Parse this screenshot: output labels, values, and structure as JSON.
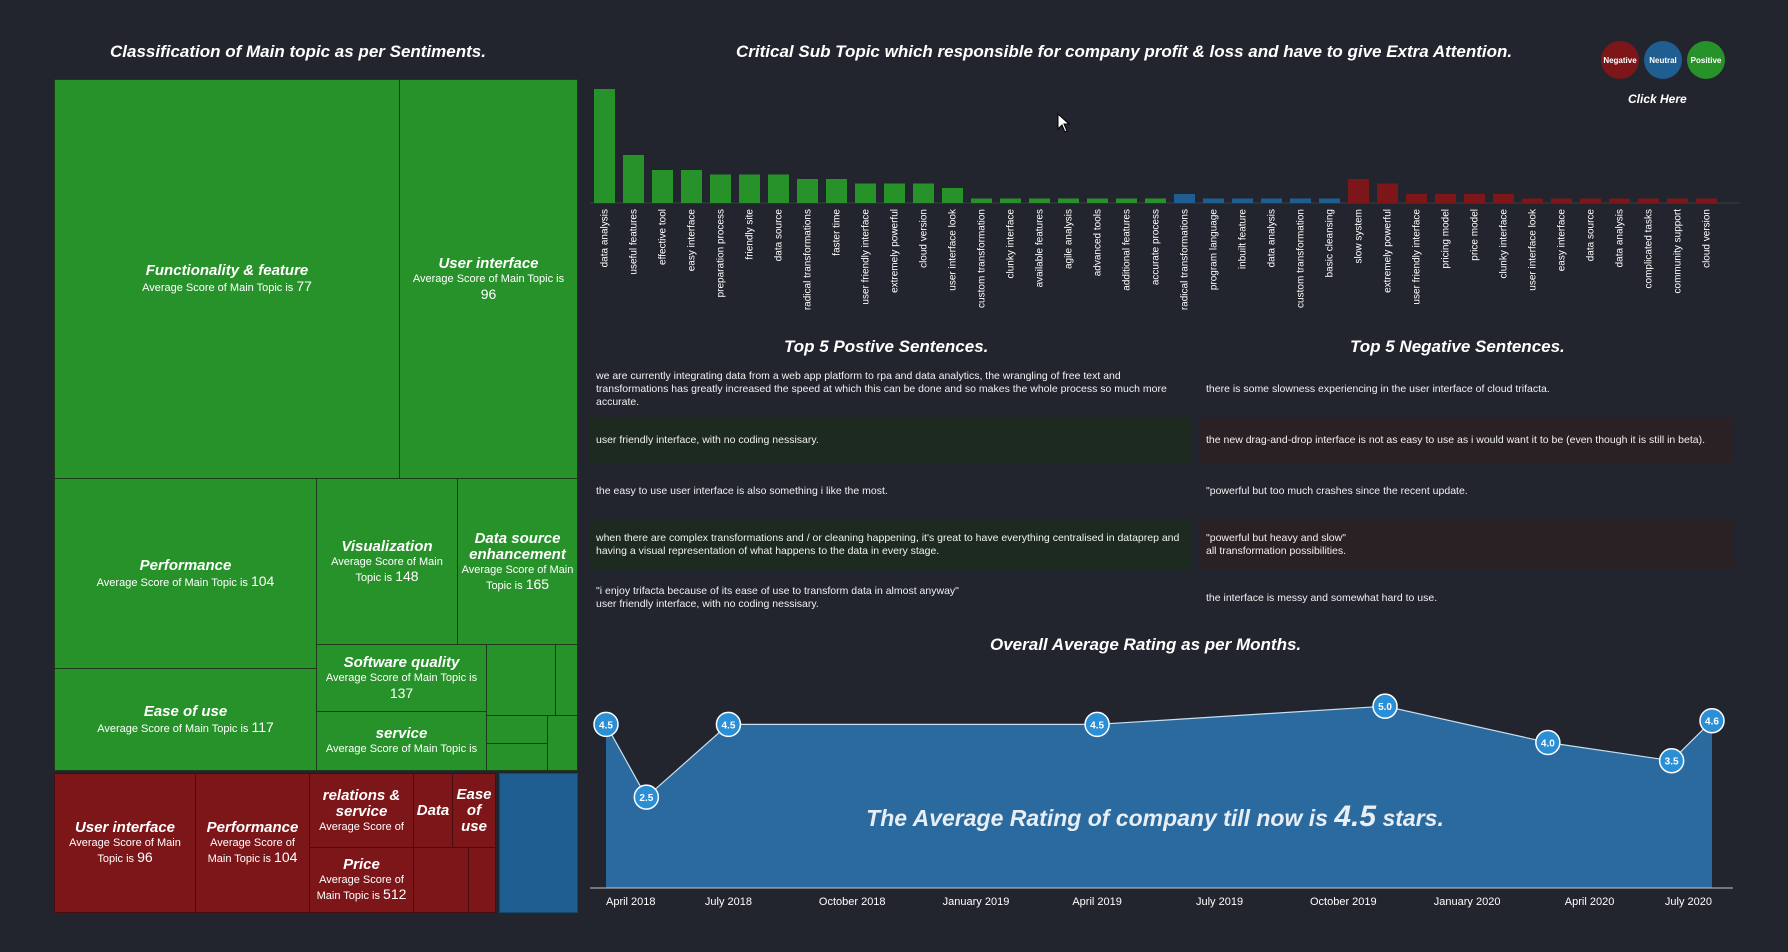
{
  "titles": {
    "treemap": "Classification of Main topic as per Sentiments.",
    "bars": "Critical Sub Topic which responsible for company profit & loss and have to give Extra Attention.",
    "positive": "Top 5 Postive Sentences.",
    "negative": "Top 5 Negative Sentences.",
    "line": "Overall Average Rating as per Months."
  },
  "legend": {
    "negative": "Negative",
    "neutral": "Neutral",
    "positive": "Positive",
    "click_here": "Click Here",
    "colors": {
      "negative": "#7d1619",
      "neutral": "#1f5e91",
      "positive": "#28922a"
    }
  },
  "treemap": {
    "prefix": "Average Score of Main Topic is",
    "green": [
      {
        "name": "Functionality & feature",
        "sub": "Average Score of Main Topic is",
        "value": "77"
      },
      {
        "name": "User interface",
        "sub": "Average Score of Main Topic is",
        "value": "96"
      },
      {
        "name": "Performance",
        "sub": "Average Score of Main Topic is",
        "value": "104"
      },
      {
        "name": "Visualization",
        "sub": "Average Score of Main Topic is",
        "value": "148"
      },
      {
        "name": "Data source enhancement",
        "sub": "Average Score of Main Topic is",
        "value": "165"
      },
      {
        "name": "Ease of use",
        "sub": "Average Score of Main Topic is",
        "value": "117"
      },
      {
        "name": "Software quality",
        "sub": "Average Score of Main Topic is",
        "value": "137"
      },
      {
        "name": "service",
        "sub": "Average Score of Main Topic is",
        "value": ""
      }
    ],
    "red": [
      {
        "name": "User interface",
        "sub": "Average Score of Main Topic is",
        "value": "96"
      },
      {
        "name": "Performance",
        "sub": "Average Score of Main Topic is",
        "value": "104"
      },
      {
        "name": "relations & service",
        "sub": "Average Score of",
        "value": ""
      },
      {
        "name": "Data",
        "sub": "",
        "value": ""
      },
      {
        "name": "Ease of use",
        "sub": "",
        "value": ""
      },
      {
        "name": "Price",
        "sub": "Average Score of Main Topic is",
        "value": "512"
      }
    ]
  },
  "sentences": {
    "positive": [
      "we are currently integrating data from a web app platform to rpa and data analytics, the wrangling of free text and transformations has greatly increased the speed at which this can be done and so makes the whole process so much more accurate.",
      "user friendly interface, with no coding nessisary.",
      "the easy to use user interface is also something i like the most.",
      "when there are complex transformations and / or cleaning happening, it's great to have everything centralised in dataprep and having a visual representation of what happens to the data in every stage.",
      "\"i enjoy trifacta because of its ease of use to transform data in almost anyway\"\n user friendly interface, with no coding nessisary."
    ],
    "negative": [
      "there is some slowness experiencing in the user interface of cloud trifacta.",
      "the new drag-and-drop interface is not as easy to use as i would want it to be (even though it is still in beta).",
      "\"powerful but too much crashes since the recent update.",
      "\"powerful but heavy and slow\"\n all transformation possibilities.",
      "the interface is messy and somewhat hard to use."
    ]
  },
  "chart_data": [
    {
      "type": "bar",
      "title": "Critical Sub Topic which responsible for company profit & loss and have to give Extra Attention.",
      "categories": [
        "data analysis",
        "useful features",
        "effective tool",
        "easy interface",
        "preparation process",
        "friendly site",
        "data source",
        "radical transformations",
        "faster time",
        "user friendly interface",
        "extremely powerful",
        "cloud version",
        "user interface look",
        "custom transformation",
        "clunky interface",
        "available features",
        "agile analysis",
        "advanced tools",
        "additional features",
        "accurate process",
        "radical transformations",
        "program language",
        "inbuilt feature",
        "data analysis",
        "custom transformation",
        "basic cleansing",
        "slow system",
        "extremely powerful",
        "user friendly interface",
        "pricing model",
        "price model",
        "clunky interface",
        "user interface look",
        "easy interface",
        "data source",
        "data analysis",
        "complicated tasks",
        "community support",
        "cloud version"
      ],
      "values": [
        38,
        16,
        11,
        11,
        9.5,
        9.5,
        9.5,
        8,
        8,
        6.5,
        6.5,
        6.5,
        5,
        1.5,
        1.5,
        1.5,
        1.5,
        1.5,
        1.5,
        1.5,
        3,
        1.5,
        1.5,
        1.5,
        1.5,
        1.5,
        8,
        6.5,
        3,
        3,
        3,
        3,
        1.5,
        1.5,
        1.5,
        1.5,
        1.5,
        1.5,
        1.5
      ],
      "sentiment": [
        "positive",
        "positive",
        "positive",
        "positive",
        "positive",
        "positive",
        "positive",
        "positive",
        "positive",
        "positive",
        "positive",
        "positive",
        "positive",
        "positive",
        "positive",
        "positive",
        "positive",
        "positive",
        "positive",
        "positive",
        "neutral",
        "neutral",
        "neutral",
        "neutral",
        "neutral",
        "neutral",
        "negative",
        "negative",
        "negative",
        "negative",
        "negative",
        "negative",
        "negative",
        "negative",
        "negative",
        "negative",
        "negative",
        "negative",
        "negative"
      ],
      "colors": {
        "positive": "#28922a",
        "neutral": "#1f5e91",
        "negative": "#7d1619"
      }
    },
    {
      "type": "area",
      "title": "Overall Average Rating as per Months.",
      "x": [
        "2018-04-01",
        "2018-05-01",
        "2018-07-01",
        "2019-04-01",
        "2019-11-01",
        "2020-03-01",
        "2020-06-01",
        "2020-07-01"
      ],
      "values": [
        4.5,
        2.5,
        4.5,
        4.5,
        5.0,
        4.0,
        3.5,
        4.6
      ],
      "labels": [
        "4.5",
        "2.5",
        "4.5",
        "4.5",
        "5.0",
        "4.0",
        "3.5",
        "4.6"
      ],
      "x_ticks": [
        "April 2018",
        "July 2018",
        "October 2018",
        "January 2019",
        "April 2019",
        "July 2019",
        "October 2019",
        "January 2020",
        "April 2020",
        "July 2020"
      ],
      "x_range": [
        "2018-04-01",
        "2020-07-01"
      ],
      "ylim": [
        0,
        5.5
      ],
      "fill_color": "#2a6a9e",
      "annotation_prefix": "The Average Rating of company till now is",
      "annotation_value": "4.5",
      "annotation_suffix": "stars."
    }
  ]
}
